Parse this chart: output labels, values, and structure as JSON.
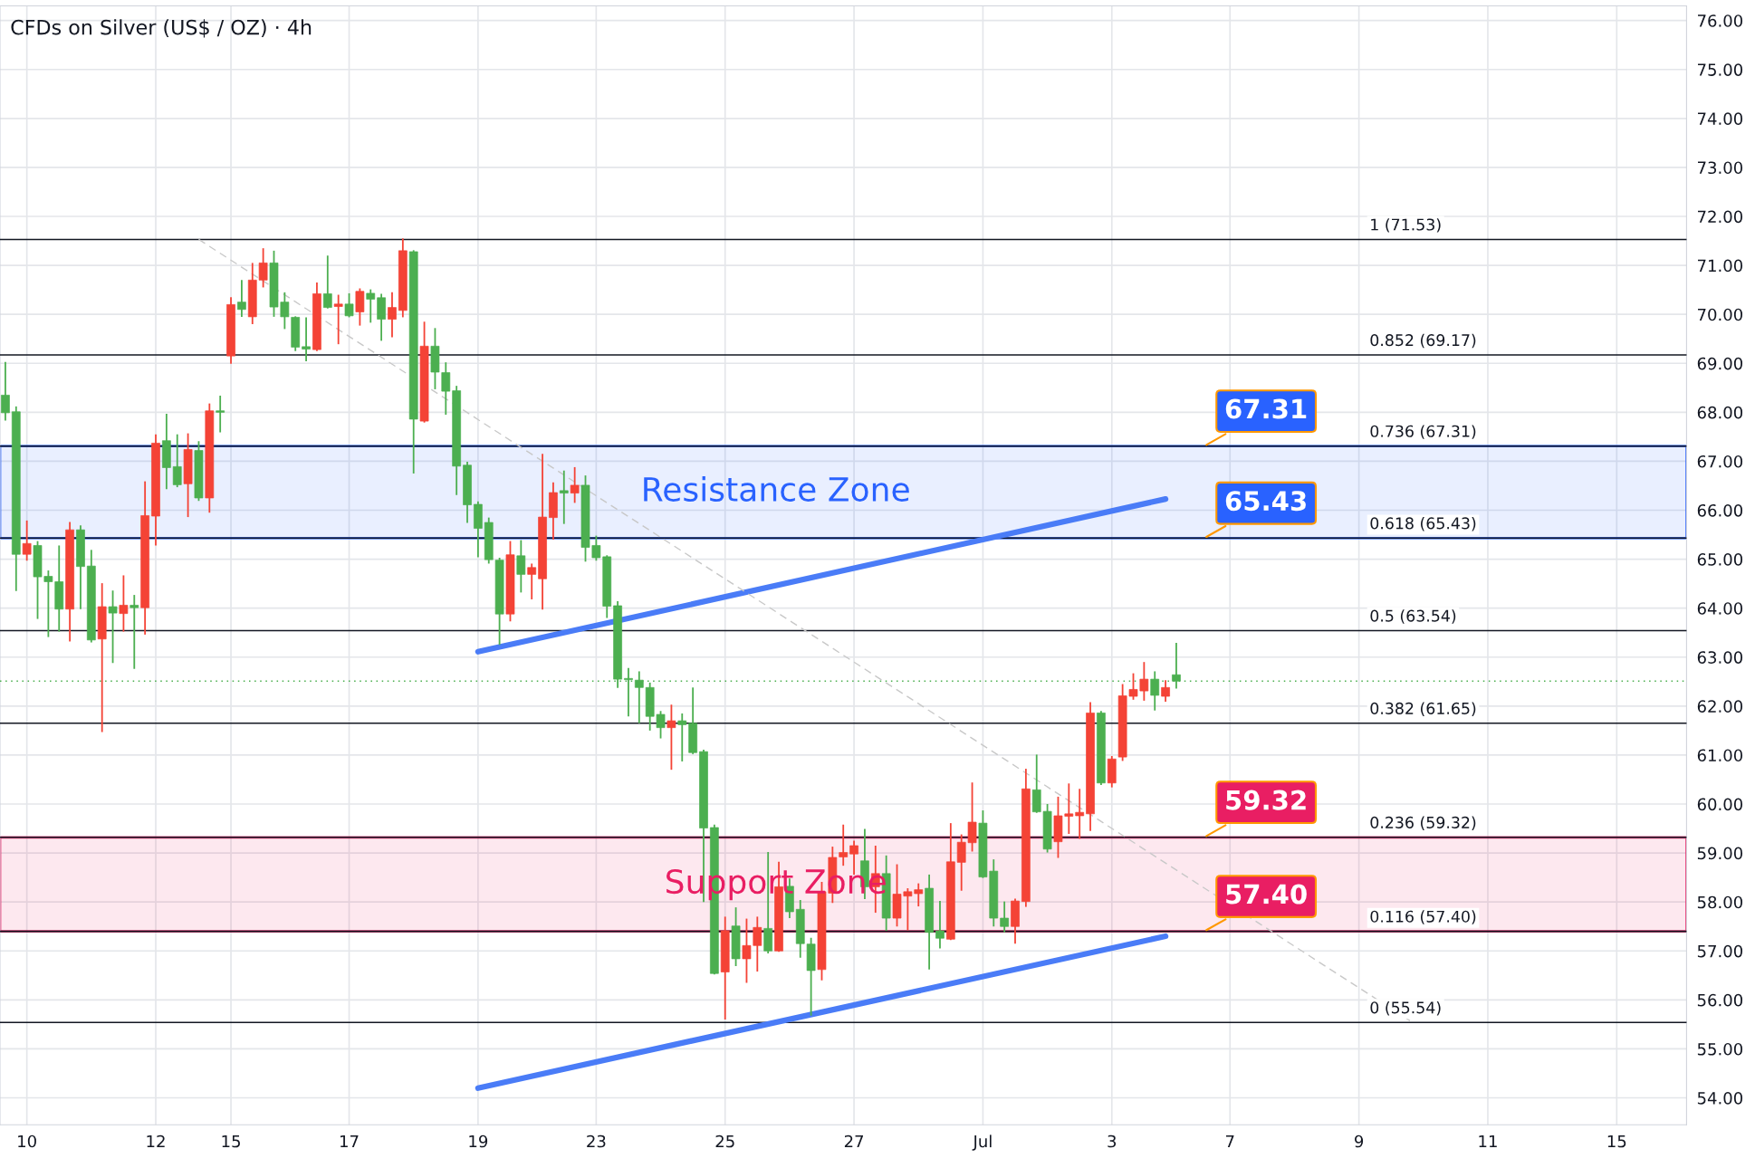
{
  "chart_data": {
    "type": "candlestick",
    "title": "CFDs on Silver (US$ / OZ) · 4h",
    "categories": [
      null,
      null,
      "10",
      null,
      null,
      null,
      null,
      null,
      null,
      null,
      null,
      null,
      null,
      null,
      "12",
      null,
      null,
      null,
      null,
      null,
      null,
      "15",
      null,
      null,
      null,
      null,
      null,
      null,
      null,
      null,
      null,
      null,
      "17",
      null,
      null,
      null,
      null,
      null,
      null,
      null,
      null,
      null,
      null,
      null,
      "19",
      null,
      null,
      null,
      null,
      null,
      null,
      null,
      null,
      null,
      null,
      "23",
      null,
      null,
      null,
      null,
      null,
      null,
      null,
      null,
      null,
      null,
      null,
      "25",
      null,
      null,
      null,
      null,
      null,
      null,
      null,
      null,
      null,
      null,
      null,
      "27",
      null,
      null,
      null,
      null,
      null,
      null,
      null,
      null,
      null,
      null,
      null,
      "Jul",
      null,
      null,
      null,
      null,
      null,
      null,
      null,
      null,
      null,
      null,
      null,
      "3",
      null,
      null,
      null,
      null,
      null,
      null,
      null,
      null,
      null,
      null,
      "7",
      null,
      null,
      null,
      null,
      null,
      null,
      null,
      null,
      null,
      null,
      null,
      "9",
      null,
      null,
      null,
      null,
      null,
      null,
      null,
      null,
      null,
      null,
      null,
      "11",
      null,
      null,
      null,
      null,
      null,
      null,
      null,
      null,
      null,
      null,
      null,
      "15",
      null,
      null,
      null,
      null,
      null,
      null
    ],
    "ohlc": [
      [
        68.35,
        69.03,
        67.83,
        67.99
      ],
      [
        68.01,
        68.12,
        64.35,
        65.1
      ],
      [
        65.1,
        65.79,
        64.97,
        65.32
      ],
      [
        65.28,
        65.37,
        63.78,
        64.64
      ],
      [
        64.65,
        64.77,
        63.41,
        64.54
      ],
      [
        64.54,
        65.28,
        63.52,
        63.98
      ],
      [
        63.98,
        65.76,
        63.32,
        65.6
      ],
      [
        65.6,
        65.69,
        63.98,
        64.85
      ],
      [
        64.86,
        65.19,
        63.3,
        63.35
      ],
      [
        63.37,
        64.51,
        61.47,
        64.03
      ],
      [
        64.03,
        64.36,
        62.88,
        63.9
      ],
      [
        63.89,
        64.67,
        63.52,
        64.06
      ],
      [
        64.06,
        64.27,
        62.76,
        64.01
      ],
      [
        64.01,
        66.59,
        63.46,
        65.89
      ],
      [
        65.88,
        67.55,
        65.28,
        67.37
      ],
      [
        67.42,
        67.97,
        66.43,
        66.87
      ],
      [
        66.89,
        67.55,
        66.47,
        66.52
      ],
      [
        66.54,
        67.57,
        65.86,
        67.24
      ],
      [
        67.22,
        67.41,
        66.19,
        66.25
      ],
      [
        66.25,
        68.18,
        65.95,
        68.03
      ],
      [
        68.03,
        68.34,
        67.59,
        68.0
      ],
      [
        69.15,
        70.35,
        68.99,
        70.2
      ],
      [
        70.25,
        70.7,
        69.95,
        70.1
      ],
      [
        69.95,
        71.05,
        69.8,
        70.7
      ],
      [
        70.7,
        71.35,
        70.55,
        71.05
      ],
      [
        71.05,
        71.3,
        69.95,
        70.15
      ],
      [
        70.25,
        70.45,
        69.7,
        69.95
      ],
      [
        69.94,
        69.96,
        69.25,
        69.33
      ],
      [
        69.34,
        69.94,
        69.04,
        69.29
      ],
      [
        69.28,
        70.65,
        69.25,
        70.42
      ],
      [
        70.42,
        71.2,
        70.12,
        70.14
      ],
      [
        70.16,
        70.4,
        69.39,
        70.21
      ],
      [
        70.21,
        70.43,
        69.94,
        69.97
      ],
      [
        70.05,
        70.53,
        69.77,
        70.47
      ],
      [
        70.43,
        70.51,
        69.83,
        70.31
      ],
      [
        70.34,
        70.42,
        69.46,
        69.9
      ],
      [
        69.9,
        70.45,
        69.53,
        70.14
      ],
      [
        70.08,
        71.55,
        69.94,
        71.3
      ],
      [
        71.28,
        71.31,
        66.75,
        67.86
      ],
      [
        67.82,
        69.85,
        67.79,
        69.35
      ],
      [
        69.35,
        69.72,
        68.47,
        68.82
      ],
      [
        68.81,
        69.02,
        67.95,
        68.43
      ],
      [
        68.44,
        68.54,
        66.31,
        66.9
      ],
      [
        66.92,
        66.99,
        65.74,
        66.11
      ],
      [
        66.12,
        66.18,
        65.04,
        65.63
      ],
      [
        65.75,
        65.85,
        64.91,
        64.99
      ],
      [
        64.98,
        65.03,
        63.25,
        63.88
      ],
      [
        63.88,
        65.37,
        63.73,
        65.09
      ],
      [
        65.07,
        65.39,
        64.32,
        64.69
      ],
      [
        64.69,
        64.91,
        64.18,
        64.83
      ],
      [
        64.6,
        67.15,
        63.97,
        65.86
      ],
      [
        65.85,
        66.57,
        65.4,
        66.36
      ],
      [
        66.4,
        66.81,
        65.72,
        66.35
      ],
      [
        66.35,
        66.88,
        66.15,
        66.51
      ],
      [
        66.51,
        66.71,
        64.95,
        65.24
      ],
      [
        65.28,
        65.48,
        64.97,
        65.03
      ],
      [
        65.05,
        65.08,
        63.8,
        64.04
      ],
      [
        64.05,
        64.14,
        62.37,
        62.55
      ],
      [
        62.56,
        62.78,
        61.79,
        62.54
      ],
      [
        62.53,
        62.71,
        61.65,
        62.38
      ],
      [
        62.38,
        62.48,
        61.5,
        61.79
      ],
      [
        61.83,
        61.9,
        61.34,
        61.56
      ],
      [
        61.56,
        62.03,
        60.7,
        61.7
      ],
      [
        61.7,
        61.85,
        60.87,
        61.62
      ],
      [
        61.65,
        62.38,
        61.02,
        61.05
      ],
      [
        61.07,
        61.11,
        58.0,
        59.51
      ],
      [
        59.52,
        59.58,
        56.52,
        56.54
      ],
      [
        56.57,
        57.7,
        55.6,
        57.41
      ],
      [
        57.51,
        57.89,
        56.69,
        56.84
      ],
      [
        56.84,
        57.66,
        56.35,
        57.11
      ],
      [
        57.11,
        57.7,
        56.58,
        57.48
      ],
      [
        57.46,
        59.02,
        56.95,
        57.0
      ],
      [
        57.0,
        58.82,
        56.98,
        58.31
      ],
      [
        58.32,
        58.48,
        57.67,
        57.8
      ],
      [
        57.85,
        58.04,
        56.86,
        57.15
      ],
      [
        57.14,
        57.27,
        55.68,
        56.6
      ],
      [
        56.62,
        58.41,
        56.4,
        58.21
      ],
      [
        58.18,
        59.13,
        57.98,
        58.91
      ],
      [
        58.92,
        59.58,
        58.74,
        59.01
      ],
      [
        58.98,
        59.25,
        58.56,
        59.15
      ],
      [
        58.84,
        59.49,
        58.06,
        58.31
      ],
      [
        58.31,
        59.15,
        57.78,
        58.58
      ],
      [
        58.58,
        58.95,
        57.41,
        57.67
      ],
      [
        57.67,
        58.77,
        57.5,
        58.16
      ],
      [
        58.12,
        58.28,
        57.42,
        58.21
      ],
      [
        58.17,
        58.38,
        57.91,
        58.25
      ],
      [
        58.28,
        58.56,
        56.62,
        57.38
      ],
      [
        57.41,
        58.02,
        57.05,
        57.26
      ],
      [
        57.24,
        59.61,
        57.22,
        58.82
      ],
      [
        58.81,
        59.38,
        58.23,
        59.22
      ],
      [
        59.21,
        60.44,
        59.03,
        59.63
      ],
      [
        59.61,
        59.87,
        58.49,
        58.51
      ],
      [
        58.63,
        58.87,
        57.5,
        57.67
      ],
      [
        57.67,
        58.01,
        57.38,
        57.5
      ],
      [
        57.5,
        58.07,
        57.15,
        58.02
      ],
      [
        58.01,
        60.72,
        57.9,
        60.31
      ],
      [
        60.29,
        61.01,
        59.82,
        59.84
      ],
      [
        59.85,
        60.0,
        59.01,
        59.08
      ],
      [
        59.23,
        60.15,
        58.9,
        59.76
      ],
      [
        59.75,
        60.42,
        59.39,
        59.8
      ],
      [
        59.76,
        60.31,
        59.29,
        59.83
      ],
      [
        59.8,
        62.08,
        59.45,
        61.86
      ],
      [
        61.86,
        61.9,
        60.39,
        60.43
      ],
      [
        60.43,
        60.98,
        60.34,
        60.92
      ],
      [
        60.96,
        62.45,
        60.88,
        62.21
      ],
      [
        62.2,
        62.67,
        62.13,
        62.34
      ],
      [
        62.31,
        62.9,
        62.11,
        62.55
      ],
      [
        62.55,
        62.71,
        61.91,
        62.22
      ],
      [
        62.2,
        62.53,
        62.09,
        62.38
      ],
      [
        62.64,
        63.29,
        62.36,
        62.51
      ],
      null,
      null,
      null,
      null,
      null,
      null,
      null,
      null,
      null,
      null,
      null,
      null,
      null,
      null,
      null,
      null,
      null,
      null,
      null,
      null,
      null,
      null,
      null,
      null,
      null,
      null,
      null,
      null,
      null,
      null,
      null,
      null,
      null,
      null,
      null,
      null,
      null,
      null,
      null,
      null,
      null,
      null,
      null,
      null,
      null,
      null,
      null
    ],
    "colors": [
      "#4caf50",
      "#4caf50",
      "#f44336",
      "#4caf50",
      "#4caf50",
      "#4caf50",
      "#f44336",
      "#4caf50",
      "#4caf50",
      "#f44336",
      "#4caf50",
      "#f44336",
      "#4caf50",
      "#f44336",
      "#f44336",
      "#4caf50",
      "#4caf50",
      "#f44336",
      "#4caf50",
      "#f44336",
      "#4caf50",
      "#f44336",
      "#4caf50",
      "#f44336",
      "#f44336",
      "#4caf50",
      "#4caf50",
      "#4caf50",
      "#4caf50",
      "#f44336",
      "#4caf50",
      "#f44336",
      "#4caf50",
      "#f44336",
      "#4caf50",
      "#4caf50",
      "#f44336",
      "#f44336",
      "#4caf50",
      "#f44336",
      "#4caf50",
      "#4caf50",
      "#4caf50",
      "#4caf50",
      "#4caf50",
      "#4caf50",
      "#4caf50",
      "#f44336",
      "#4caf50",
      "#f44336",
      "#f44336",
      "#f44336",
      "#4caf50",
      "#f44336",
      "#4caf50",
      "#4caf50",
      "#4caf50",
      "#4caf50",
      "#4caf50",
      "#4caf50",
      "#4caf50",
      "#4caf50",
      "#f44336",
      "#4caf50",
      "#4caf50",
      "#4caf50",
      "#4caf50",
      "#f44336",
      "#4caf50",
      "#f44336",
      "#f44336",
      "#4caf50",
      "#f44336",
      "#4caf50",
      "#4caf50",
      "#4caf50",
      "#f44336",
      "#f44336",
      "#f44336",
      "#f44336",
      "#4caf50",
      "#f44336",
      "#4caf50",
      "#f44336",
      "#f44336",
      "#f44336",
      "#4caf50",
      "#4caf50",
      "#f44336",
      "#f44336",
      "#f44336",
      "#4caf50",
      "#4caf50",
      "#4caf50",
      "#f44336",
      "#f44336",
      "#4caf50",
      "#4caf50",
      "#f44336",
      "#f44336",
      "#f44336",
      "#f44336",
      "#4caf50",
      "#f44336",
      "#f44336",
      "#f44336",
      "#f44336",
      "#4caf50",
      "#f44336",
      "#4caf50",
      null,
      null,
      null,
      null,
      null,
      null,
      null,
      null,
      null,
      null,
      null,
      null,
      null,
      null,
      null,
      null,
      null,
      null,
      null,
      null,
      null,
      null,
      null,
      null,
      null,
      null,
      null,
      null,
      null,
      null,
      null,
      null,
      null,
      null,
      null,
      null,
      null,
      null,
      null,
      null,
      null,
      null,
      null,
      null,
      null,
      null,
      null
    ],
    "series": [
      {
        "type": "line",
        "color": "#4a7cf7",
        "line_style": "solid",
        "values": [
          null,
          null,
          null,
          null,
          null,
          null,
          null,
          null,
          null,
          null,
          null,
          null,
          null,
          null,
          null,
          null,
          null,
          null,
          null,
          null,
          null,
          null,
          null,
          null,
          null,
          null,
          null,
          null,
          null,
          null,
          null,
          null,
          null,
          null,
          null,
          null,
          null,
          null,
          null,
          null,
          null,
          null,
          null,
          null,
          63.11,
          null,
          null,
          null,
          null,
          null,
          null,
          null,
          null,
          null,
          null,
          null,
          null,
          null,
          null,
          null,
          null,
          null,
          null,
          null,
          null,
          null,
          null,
          null,
          null,
          null,
          null,
          null,
          null,
          null,
          null,
          null,
          null,
          null,
          null,
          null,
          null,
          null,
          null,
          null,
          null,
          null,
          null,
          null,
          null,
          null,
          null,
          null,
          null,
          null,
          null,
          null,
          null,
          null,
          null,
          null,
          null,
          null,
          null,
          null,
          null,
          null,
          null,
          null,
          66.23,
          null,
          null,
          null,
          null,
          null,
          null,
          null,
          null,
          null,
          null,
          null,
          null,
          null,
          null,
          null,
          null,
          null,
          null,
          null,
          null,
          null,
          null,
          null,
          null,
          null,
          null,
          null,
          null,
          null,
          null,
          null,
          null,
          null,
          null,
          null,
          null,
          null,
          null,
          null,
          null,
          null,
          null,
          null,
          null,
          null,
          null,
          null,
          null
        ]
      },
      {
        "type": "line",
        "color": "#4a7cf7",
        "line_style": "solid",
        "values": [
          null,
          null,
          null,
          null,
          null,
          null,
          null,
          null,
          null,
          null,
          null,
          null,
          null,
          null,
          null,
          null,
          null,
          null,
          null,
          null,
          null,
          null,
          null,
          null,
          null,
          null,
          null,
          null,
          null,
          null,
          null,
          null,
          null,
          null,
          null,
          null,
          null,
          null,
          null,
          null,
          null,
          null,
          null,
          null,
          54.2,
          null,
          null,
          null,
          null,
          null,
          null,
          null,
          null,
          null,
          null,
          null,
          null,
          null,
          null,
          null,
          null,
          null,
          null,
          null,
          null,
          null,
          null,
          null,
          null,
          null,
          null,
          null,
          null,
          null,
          null,
          null,
          null,
          null,
          null,
          null,
          null,
          null,
          null,
          null,
          null,
          null,
          null,
          null,
          null,
          null,
          null,
          null,
          null,
          null,
          null,
          null,
          null,
          null,
          null,
          null,
          null,
          null,
          null,
          null,
          null,
          null,
          null,
          null,
          57.3,
          null,
          null,
          null,
          null,
          null,
          null,
          null,
          null,
          null,
          null,
          null,
          null,
          null,
          null,
          null,
          null,
          null,
          null,
          null,
          null,
          null,
          null,
          null,
          null,
          null,
          null,
          null,
          null,
          null,
          null,
          null,
          null,
          null,
          null,
          null,
          null,
          null,
          null,
          null,
          null,
          null,
          null,
          null,
          null,
          null,
          null,
          null,
          null
        ]
      },
      {
        "type": "line",
        "color": "#c8c8c8",
        "line_style": "dashed",
        "values": [
          null,
          null,
          null,
          null,
          null,
          null,
          null,
          null,
          null,
          null,
          null,
          null,
          null,
          null,
          null,
          null,
          null,
          null,
          71.53,
          null,
          null,
          null,
          null,
          null,
          null,
          null,
          null,
          null,
          null,
          null,
          null,
          null,
          null,
          null,
          null,
          null,
          null,
          null,
          null,
          null,
          null,
          null,
          null,
          null,
          null,
          null,
          null,
          null,
          null,
          null,
          null,
          null,
          null,
          null,
          null,
          null,
          null,
          null,
          null,
          null,
          null,
          null,
          null,
          null,
          null,
          null,
          null,
          null,
          null,
          null,
          null,
          null,
          null,
          null,
          null,
          null,
          null,
          null,
          null,
          null,
          null,
          null,
          null,
          null,
          null,
          null,
          null,
          null,
          null,
          null,
          null,
          null,
          null,
          null,
          null,
          null,
          null,
          null,
          null,
          null,
          null,
          null,
          null,
          null,
          null,
          null,
          null,
          null,
          null,
          null,
          null,
          null,
          null,
          null,
          null,
          null,
          null,
          null,
          null,
          null,
          null,
          null,
          null,
          null,
          null,
          null,
          null,
          null,
          null,
          null,
          null,
          55.54,
          null,
          null,
          null,
          null,
          null,
          null,
          null,
          null,
          null,
          null,
          null,
          null,
          null,
          null,
          null,
          null,
          null,
          null,
          null,
          null,
          null,
          null,
          null,
          null,
          null
        ]
      }
    ],
    "ref_lines": [
      {
        "axis": "y",
        "value": 71.53,
        "label": "1 (71.53)",
        "color": "#131722"
      },
      {
        "axis": "y",
        "value": 69.17,
        "label": "0.852 (69.17)",
        "color": "#131722"
      },
      {
        "axis": "y",
        "value": 67.31,
        "label": "0.736 (67.31)",
        "color": "#131722"
      },
      {
        "axis": "y",
        "value": 65.43,
        "label": "0.618 (65.43)",
        "color": "#131722"
      },
      {
        "axis": "y",
        "value": 63.54,
        "label": "0.5 (63.54)",
        "color": "#131722"
      },
      {
        "axis": "y",
        "value": 61.65,
        "label": "0.382 (61.65)",
        "color": "#131722"
      },
      {
        "axis": "y",
        "value": 59.32,
        "label": "0.236 (59.32)",
        "color": "#131722"
      },
      {
        "axis": "y",
        "value": 57.4,
        "label": "0.116 (57.40)",
        "color": "#131722"
      },
      {
        "axis": "y",
        "value": 55.54,
        "label": "0 (55.54)",
        "color": "#131722"
      },
      {
        "axis": "y",
        "value": 62.51,
        "color": "#4caf50",
        "line_style": "dotted"
      }
    ],
    "bands": [
      {
        "axis": "y",
        "from": 65.43,
        "to": 67.31,
        "label": "Resistance Zone",
        "color": "#2962ff"
      },
      {
        "axis": "y",
        "from": 57.4,
        "to": 59.32,
        "label": "Support Zone",
        "color": "#e91e63"
      }
    ],
    "annotations": [
      {
        "text": "67.31",
        "y": 67.31
      },
      {
        "text": "65.43",
        "y": 65.43
      },
      {
        "text": "59.32",
        "y": 59.32
      },
      {
        "text": "57.40",
        "y": 57.4
      }
    ],
    "ylim": [
      53.45,
      76.3
    ],
    "yticks": [
      {
        "value": 54,
        "label": "54.00"
      },
      {
        "value": 55,
        "label": "55.00"
      },
      {
        "value": 56,
        "label": "56.00"
      },
      {
        "value": 57,
        "label": "57.00"
      },
      {
        "value": 58,
        "label": "58.00"
      },
      {
        "value": 59,
        "label": "59.00"
      },
      {
        "value": 60,
        "label": "60.00"
      },
      {
        "value": 61,
        "label": "61.00"
      },
      {
        "value": 62,
        "label": "62.00"
      },
      {
        "value": 63,
        "label": "63.00"
      },
      {
        "value": 64,
        "label": "64.00"
      },
      {
        "value": 65,
        "label": "65.00"
      },
      {
        "value": 66,
        "label": "66.00"
      },
      {
        "value": 67,
        "label": "67.00"
      },
      {
        "value": 68,
        "label": "68.00"
      },
      {
        "value": 69,
        "label": "69.00"
      },
      {
        "value": 70,
        "label": "70.00"
      },
      {
        "value": 71,
        "label": "71.00"
      },
      {
        "value": 72,
        "label": "72.00"
      },
      {
        "value": 73,
        "label": "73.00"
      },
      {
        "value": 74,
        "label": "74.00"
      },
      {
        "value": 75,
        "label": "75.00"
      },
      {
        "value": 76,
        "label": "76.00"
      }
    ],
    "grid": true
  }
}
